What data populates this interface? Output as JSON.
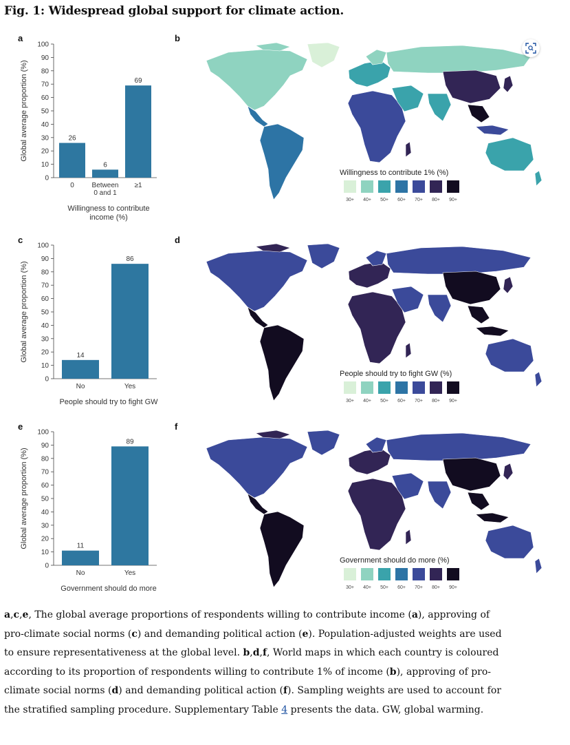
{
  "figure": {
    "title": "Fig. 1: Widespread global support for climate action."
  },
  "panels": {
    "a": "a",
    "b": "b",
    "c": "c",
    "d": "d",
    "e": "e",
    "f": "f"
  },
  "chart_data": [
    {
      "type": "bar",
      "panel": "a",
      "categories": [
        [
          "0"
        ],
        [
          "Between",
          "0 and 1"
        ],
        [
          "≥1"
        ]
      ],
      "values": [
        26,
        6,
        69
      ],
      "data_labels": [
        "26",
        "6",
        "69"
      ],
      "xlabel": [
        "Willingness to contribute",
        "income (%)"
      ],
      "ylabel": "Global average proportion (%)",
      "ylim": [
        0,
        100
      ],
      "yticks": [
        0,
        10,
        20,
        30,
        40,
        50,
        60,
        70,
        80,
        90,
        100
      ],
      "color": "#2e77a0"
    },
    {
      "type": "bar",
      "panel": "c",
      "categories": [
        [
          "No"
        ],
        [
          "Yes"
        ]
      ],
      "values": [
        14,
        86
      ],
      "data_labels": [
        "14",
        "86"
      ],
      "xlabel": [
        "People should try to fight GW"
      ],
      "ylabel": "Global average proportion (%)",
      "ylim": [
        0,
        100
      ],
      "yticks": [
        0,
        10,
        20,
        30,
        40,
        50,
        60,
        70,
        80,
        90,
        100
      ],
      "color": "#2e77a0"
    },
    {
      "type": "bar",
      "panel": "e",
      "categories": [
        [
          "No"
        ],
        [
          "Yes"
        ]
      ],
      "values": [
        11,
        89
      ],
      "data_labels": [
        "11",
        "89"
      ],
      "xlabel": [
        "Government should do more"
      ],
      "ylabel": "Global average proportion (%)",
      "ylim": [
        0,
        100
      ],
      "yticks": [
        0,
        10,
        20,
        30,
        40,
        50,
        60,
        70,
        80,
        90,
        100
      ],
      "color": "#2e77a0"
    }
  ],
  "maps": [
    {
      "panel": "b",
      "legend_title": "Willingness to contribute 1% (%)",
      "theme": "light"
    },
    {
      "panel": "d",
      "legend_title": "People should try to fight GW (%)",
      "theme": "dark"
    },
    {
      "panel": "f",
      "legend_title": "Government should do more (%)",
      "theme": "dark"
    }
  ],
  "legend": {
    "labels": [
      "30+",
      "40+",
      "50+",
      "60+",
      "70+",
      "80+",
      "90+"
    ],
    "colors": [
      "#d9f0d8",
      "#8fd3c0",
      "#3aa3ab",
      "#2d74a5",
      "#3b4a9a",
      "#322555",
      "#120c20"
    ]
  },
  "caption": {
    "l1": "a,c,e, The global average proportions of respondents willing to contribute income (a), approving of",
    "l2": "pro-climate social norms (c) and demanding political action (e). Population-adjusted weights are used",
    "l3": "to ensure representativeness at the global level. b,d,f, World maps in which each country is coloured",
    "l4": "according to its proportion of respondents willing to contribute 1% of income (b), approving of pro-",
    "l5": "climate social norms (d) and demanding political action (f). Sampling weights are used to account for",
    "l6_a": "the stratified sampling procedure. Supplementary Table ",
    "l6_ref": "4",
    "l6_b": " presents the data. GW, global warming."
  },
  "icons": {
    "expand": "expand-icon"
  }
}
